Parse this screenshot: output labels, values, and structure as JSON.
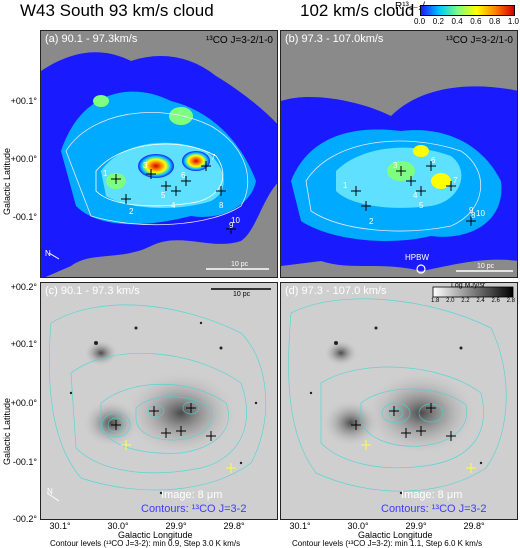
{
  "titles": {
    "left": "W43 South 93 km/s cloud",
    "right": "102 km/s cloud"
  },
  "colorbar_top": {
    "label": "R¹³₃₋₂/₁₋₀",
    "ticks": [
      "0.0",
      "0.2",
      "0.4",
      "0.6",
      "0.8",
      "1.0"
    ],
    "colors": [
      "#1a1aff",
      "#00c8ff",
      "#7fff7f",
      "#ffff00",
      "#ff8000",
      "#d00000"
    ]
  },
  "colorbar_gray": {
    "label": "Log MJy/sr",
    "ticks": [
      "1.8",
      "2.0",
      "2.2",
      "2.4",
      "2.6",
      "2.8"
    ]
  },
  "panels": [
    {
      "label": "(a) 90.1 - 97.3km/s",
      "line": "¹³CO J=3-2/1-0",
      "scale": "10 pc"
    },
    {
      "label": "(b) 97.3 - 107.0km/s",
      "line": "¹³CO J=3-2/1-0",
      "scale": "10 pc",
      "beam": "HPBW"
    },
    {
      "label": "(c) 90.1 - 97.3 km/s",
      "scale": "10 pc",
      "image": "Image: 8 μm",
      "contours": "Contours: ¹³CO J=3-2"
    },
    {
      "label": "(d) 97.3 - 107.0 km/s",
      "image": "Image: 8 μm",
      "contours": "Contours: ¹³CO J=3-2"
    }
  ],
  "axes": {
    "ylabel": "Galactic Latitude",
    "xlabel": "Galactic Longitude",
    "yticks_top": [
      "+00.1°",
      "+00.0°",
      "-00.1°"
    ],
    "yticks_bottom": [
      "+00.2°",
      "+00.1°",
      "+00.0°",
      "-00.1°",
      "-00.2°"
    ],
    "xticks": [
      "30.1°",
      "30.0°",
      "29.9°",
      "29.8°"
    ]
  },
  "footers": {
    "left": "Contour levels (¹³CO J=3-2): min 0.9, Step 3.0 K km/s",
    "right": "Contour levels (¹³CO J=3-2): min 1.1, Step 6.0 K km/s"
  },
  "clump_numbers": [
    "1",
    "2",
    "3",
    "4",
    "5",
    "6",
    "7",
    "8",
    "9",
    "10"
  ],
  "north_label": "N"
}
